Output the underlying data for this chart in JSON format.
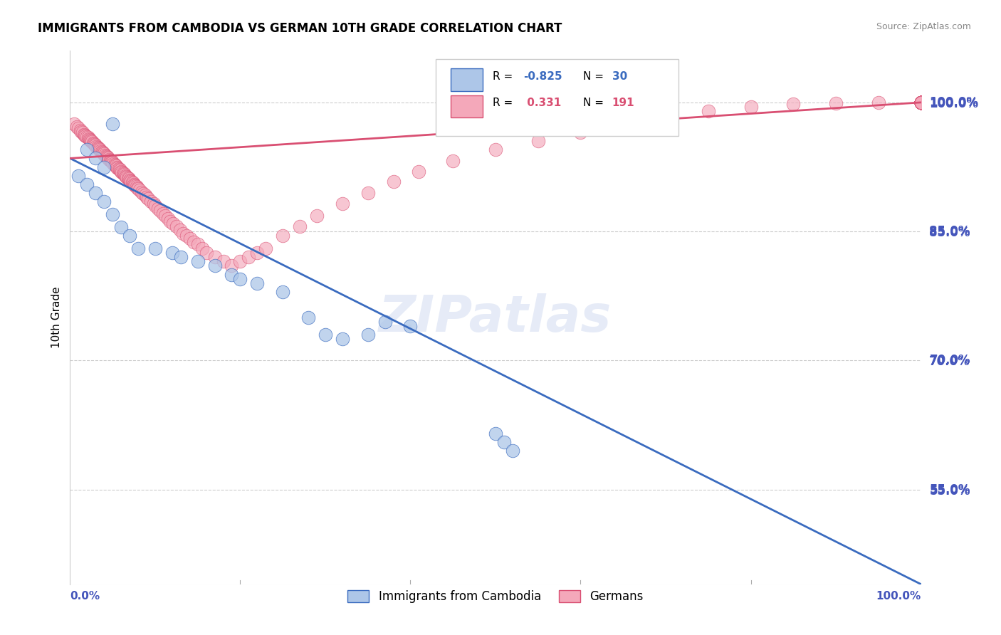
{
  "title": "IMMIGRANTS FROM CAMBODIA VS GERMAN 10TH GRADE CORRELATION CHART",
  "source": "Source: ZipAtlas.com",
  "ylabel": "10th Grade",
  "ytick_labels": [
    "55.0%",
    "70.0%",
    "85.0%",
    "100.0%"
  ],
  "ytick_values": [
    0.55,
    0.7,
    0.85,
    1.0
  ],
  "xlim": [
    0.0,
    1.0
  ],
  "ylim": [
    0.44,
    1.06
  ],
  "legend_blue_label": "Immigrants from Cambodia",
  "legend_pink_label": "Germans",
  "blue_color": "#adc6e8",
  "pink_color": "#f4a8ba",
  "blue_line_color": "#3a6bbf",
  "pink_line_color": "#d94f72",
  "background_color": "#ffffff",
  "grid_color": "#cccccc",
  "axis_label_color": "#4455bb",
  "blue_scatter_x": [
    0.05,
    0.02,
    0.03,
    0.04,
    0.01,
    0.02,
    0.03,
    0.04,
    0.05,
    0.06,
    0.07,
    0.08,
    0.1,
    0.12,
    0.13,
    0.15,
    0.17,
    0.19,
    0.2,
    0.22,
    0.25,
    0.28,
    0.3,
    0.32,
    0.35,
    0.37,
    0.4,
    0.5,
    0.51,
    0.52
  ],
  "blue_scatter_y": [
    0.975,
    0.945,
    0.935,
    0.925,
    0.915,
    0.905,
    0.895,
    0.885,
    0.87,
    0.855,
    0.845,
    0.83,
    0.83,
    0.825,
    0.82,
    0.815,
    0.81,
    0.8,
    0.795,
    0.79,
    0.78,
    0.75,
    0.73,
    0.725,
    0.73,
    0.745,
    0.74,
    0.615,
    0.605,
    0.595
  ],
  "blue_line_x0": 0.0,
  "blue_line_y0": 0.935,
  "blue_line_x1": 1.0,
  "blue_line_y1": 0.44,
  "pink_line_x0": 0.0,
  "pink_line_y0": 0.935,
  "pink_line_x1": 1.0,
  "pink_line_y1": 1.0,
  "pink_scatter_x": [
    0.005,
    0.008,
    0.01,
    0.012,
    0.013,
    0.015,
    0.016,
    0.017,
    0.018,
    0.02,
    0.021,
    0.022,
    0.023,
    0.024,
    0.025,
    0.026,
    0.027,
    0.028,
    0.029,
    0.03,
    0.031,
    0.032,
    0.033,
    0.034,
    0.035,
    0.036,
    0.037,
    0.038,
    0.039,
    0.04,
    0.041,
    0.042,
    0.043,
    0.044,
    0.045,
    0.046,
    0.047,
    0.048,
    0.049,
    0.05,
    0.051,
    0.052,
    0.053,
    0.054,
    0.055,
    0.056,
    0.057,
    0.058,
    0.059,
    0.06,
    0.061,
    0.062,
    0.063,
    0.064,
    0.065,
    0.066,
    0.067,
    0.068,
    0.069,
    0.07,
    0.071,
    0.072,
    0.073,
    0.074,
    0.075,
    0.076,
    0.077,
    0.078,
    0.079,
    0.08,
    0.082,
    0.084,
    0.086,
    0.088,
    0.09,
    0.092,
    0.095,
    0.098,
    0.1,
    0.103,
    0.106,
    0.109,
    0.112,
    0.115,
    0.118,
    0.121,
    0.125,
    0.129,
    0.133,
    0.137,
    0.141,
    0.145,
    0.15,
    0.155,
    0.16,
    0.17,
    0.18,
    0.19,
    0.2,
    0.21,
    0.22,
    0.23,
    0.25,
    0.27,
    0.29,
    0.32,
    0.35,
    0.38,
    0.41,
    0.45,
    0.5,
    0.55,
    0.6,
    0.65,
    0.7,
    0.75,
    0.8,
    0.85,
    0.9,
    0.95,
    1.0,
    1.0,
    1.0,
    1.0,
    1.0,
    1.0,
    1.0,
    1.0,
    1.0,
    1.0,
    1.0,
    1.0,
    1.0,
    1.0,
    1.0,
    1.0,
    1.0,
    1.0,
    1.0,
    1.0,
    1.0,
    1.0,
    1.0,
    1.0,
    1.0,
    1.0,
    1.0,
    1.0,
    1.0,
    1.0,
    1.0,
    1.0,
    1.0,
    1.0,
    1.0,
    1.0,
    1.0,
    1.0,
    1.0,
    1.0,
    1.0,
    1.0,
    1.0,
    1.0,
    1.0,
    1.0,
    1.0,
    1.0,
    1.0,
    1.0,
    1.0,
    1.0,
    1.0,
    1.0,
    1.0,
    1.0,
    1.0,
    1.0,
    1.0,
    1.0,
    1.0,
    1.0,
    1.0,
    1.0,
    1.0,
    1.0,
    1.0,
    1.0,
    1.0,
    1.0,
    1.0
  ],
  "pink_scatter_y": [
    0.975,
    0.972,
    0.97,
    0.968,
    0.966,
    0.965,
    0.963,
    0.962,
    0.961,
    0.96,
    0.959,
    0.958,
    0.957,
    0.956,
    0.955,
    0.954,
    0.953,
    0.952,
    0.951,
    0.95,
    0.949,
    0.948,
    0.947,
    0.946,
    0.945,
    0.944,
    0.943,
    0.942,
    0.941,
    0.94,
    0.939,
    0.938,
    0.937,
    0.936,
    0.935,
    0.934,
    0.933,
    0.932,
    0.931,
    0.93,
    0.929,
    0.928,
    0.927,
    0.926,
    0.925,
    0.924,
    0.923,
    0.922,
    0.921,
    0.92,
    0.919,
    0.918,
    0.917,
    0.916,
    0.915,
    0.914,
    0.913,
    0.912,
    0.911,
    0.91,
    0.909,
    0.908,
    0.907,
    0.906,
    0.905,
    0.904,
    0.903,
    0.902,
    0.901,
    0.9,
    0.898,
    0.896,
    0.894,
    0.892,
    0.89,
    0.888,
    0.885,
    0.882,
    0.88,
    0.877,
    0.874,
    0.871,
    0.868,
    0.865,
    0.862,
    0.859,
    0.856,
    0.852,
    0.848,
    0.845,
    0.842,
    0.838,
    0.835,
    0.83,
    0.825,
    0.82,
    0.815,
    0.81,
    0.815,
    0.82,
    0.825,
    0.83,
    0.845,
    0.856,
    0.868,
    0.882,
    0.895,
    0.908,
    0.92,
    0.932,
    0.945,
    0.955,
    0.965,
    0.975,
    0.983,
    0.99,
    0.995,
    0.998,
    0.999,
    1.0,
    1.0,
    1.0,
    1.0,
    1.0,
    1.0,
    1.0,
    1.0,
    1.0,
    1.0,
    1.0,
    1.0,
    1.0,
    1.0,
    1.0,
    1.0,
    1.0,
    1.0,
    1.0,
    1.0,
    1.0,
    1.0,
    1.0,
    1.0,
    1.0,
    1.0,
    1.0,
    1.0,
    1.0,
    1.0,
    1.0,
    1.0,
    1.0,
    1.0,
    1.0,
    1.0,
    1.0,
    1.0,
    1.0,
    1.0,
    1.0,
    1.0,
    1.0,
    1.0,
    1.0,
    1.0,
    1.0,
    1.0,
    1.0,
    1.0,
    1.0,
    1.0,
    1.0,
    1.0,
    1.0,
    1.0,
    1.0,
    1.0,
    1.0,
    1.0,
    1.0,
    1.0,
    1.0,
    1.0,
    1.0,
    1.0,
    1.0,
    1.0,
    1.0,
    1.0,
    1.0,
    1.0
  ]
}
